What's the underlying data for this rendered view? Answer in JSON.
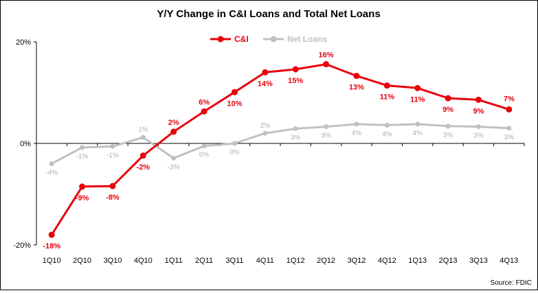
{
  "chart_data": {
    "type": "line",
    "title": "Y/Y Change in C&I Loans and Total Net Loans",
    "categories": [
      "1Q10",
      "2Q10",
      "3Q10",
      "4Q10",
      "1Q11",
      "2Q11",
      "3Q11",
      "4Q11",
      "1Q12",
      "2Q12",
      "3Q12",
      "4Q12",
      "1Q13",
      "2Q13",
      "3Q13",
      "4Q13"
    ],
    "ylim": [
      -20,
      20
    ],
    "yticks": [
      -20,
      0,
      20
    ],
    "ytick_labels": [
      "-20%",
      "0%",
      "20%"
    ],
    "grid": false,
    "legend_position": "top-center",
    "source": "Source: FDIC",
    "series": [
      {
        "name": "C&I",
        "color": "#e8000b",
        "values": [
          -18.0,
          -8.5,
          -8.4,
          -2.4,
          2.3,
          6.3,
          10.1,
          14.0,
          14.6,
          15.6,
          13.3,
          11.4,
          10.9,
          8.9,
          8.6,
          6.7
        ],
        "labels": [
          "-18%",
          "-9%",
          "-8%",
          "-2%",
          "2%",
          "6%",
          "10%",
          "14%",
          "15%",
          "16%",
          "13%",
          "11%",
          "11%",
          "9%",
          "9%",
          "7%"
        ]
      },
      {
        "name": "Net Loans",
        "color": "#c0c0c0",
        "values": [
          -4.0,
          -0.8,
          -0.6,
          1.2,
          -2.9,
          -0.5,
          0.0,
          2.0,
          2.9,
          3.3,
          3.8,
          3.6,
          3.8,
          3.4,
          3.3,
          3.0
        ],
        "labels": [
          "-4%",
          "-1%",
          "-1%",
          "1%",
          "-3%",
          "0%",
          "0%",
          "2%",
          "3%",
          "3%",
          "4%",
          "4%",
          "4%",
          "3%",
          "3%",
          "3%"
        ]
      }
    ]
  }
}
